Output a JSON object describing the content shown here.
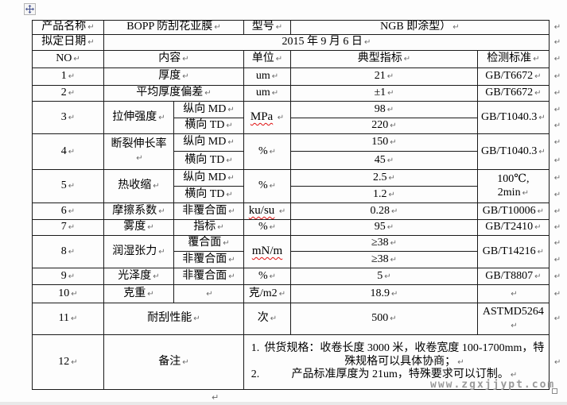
{
  "page": {
    "watermark": "www.zgxjjypt.com",
    "marks": {
      "cell_end": "↵",
      "para": "↵"
    }
  },
  "info": {
    "product_label": "产品名称",
    "product_value": "BOPP 防刮花亚膜",
    "model_label": "型号",
    "model_value": "NGB 即涂型）",
    "date_label": "拟定日期",
    "date_value": "2015 年 9 月 6 日"
  },
  "table": {
    "headers": [
      "NO",
      "内容",
      "单位",
      "典型指标",
      "检测标准"
    ],
    "rows": {
      "r1": {
        "no": "1",
        "content": "厚度",
        "unit": "um",
        "value": "21",
        "std": "GB/T6672"
      },
      "r2": {
        "no": "2",
        "content": "平均厚度偏差",
        "unit": "um",
        "value": "±1",
        "std": "GB/T6672"
      },
      "r3": {
        "no": "3",
        "content": "拉伸强度",
        "sub1": "纵向 MD",
        "sub2": "横向 TD",
        "unit": "MPa",
        "value1": "98",
        "value2": "220",
        "std": "GB/T1040.3"
      },
      "r4": {
        "no": "4",
        "content": "断裂伸长率",
        "sub1": "纵向 MD",
        "sub2": "横向 TD",
        "unit": "%",
        "value1": "150",
        "value2": "45",
        "std": "GB/T1040.3"
      },
      "r5": {
        "no": "5",
        "content": "热收缩",
        "sub1": "纵向 MD",
        "sub2": "横向 TD",
        "unit": "%",
        "value1": "2.5",
        "value2": "1.2",
        "std": "100℃, 2min"
      },
      "r6": {
        "no": "6",
        "content": "摩擦系数",
        "sub": "非覆合面",
        "unit": "ku/su",
        "value": "0.28",
        "std": "GB/T10006"
      },
      "r7": {
        "no": "7",
        "content": "雾度",
        "sub": "指标",
        "unit": "%",
        "value": "95",
        "std": "GB/T2410"
      },
      "r8": {
        "no": "8",
        "content": "润湿张力",
        "sub1": "覆合面",
        "sub2": "非覆合面",
        "unit": "mN/m",
        "value1": "≥38",
        "value2": "≥38",
        "std": "GB/T14216"
      },
      "r9": {
        "no": "9",
        "content": "光泽度",
        "sub": "非覆合面",
        "unit": "%",
        "value": "5",
        "std": "GB/T8807"
      },
      "r10": {
        "no": "10",
        "content": "克重",
        "sub": "",
        "unit": "克/m2",
        "value": "18.9",
        "std": ""
      },
      "r11": {
        "no": "11",
        "content": "耐刮性能",
        "unit": "次",
        "value": "500",
        "std": "ASTMD5264"
      },
      "r12": {
        "no": "12",
        "content": "备注",
        "note1_no": "1.",
        "note1_text": "供货规格：收卷长度 3000 米，收卷宽度 100-1700mm，特殊规格可以具体协商；",
        "note2_no": "2.",
        "note2_text": "产品标准厚度为 21um，特殊要求可以订制。"
      }
    }
  }
}
